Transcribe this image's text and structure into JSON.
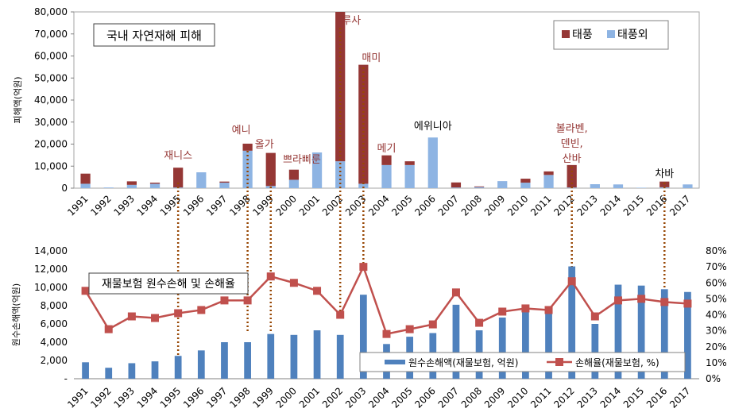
{
  "chart_data": [
    {
      "type": "bar",
      "stacked": true,
      "title": "국내 자연재해 피해",
      "ylabel": "피해액(억원)",
      "ylim": [
        0,
        80000
      ],
      "yticks": [
        0,
        10000,
        20000,
        30000,
        40000,
        50000,
        60000,
        70000,
        80000
      ],
      "ytick_labels": [
        "0",
        "10,000",
        "20,000",
        "30,000",
        "40,000",
        "50,000",
        "60,000",
        "70,000",
        "80,000"
      ],
      "categories": [
        "1991",
        "1992",
        "1993",
        "1994",
        "1995",
        "1996",
        "1997",
        "1998",
        "1999",
        "2000",
        "2001",
        "2002",
        "2003",
        "2004",
        "2005",
        "2006",
        "2007",
        "2008",
        "2009",
        "2010",
        "2011",
        "2012",
        "2013",
        "2014",
        "2015",
        "2016",
        "2017"
      ],
      "series": [
        {
          "name": "태풍외",
          "color": "#8EB4E3",
          "values": [
            2000,
            300,
            1500,
            2000,
            300,
            7200,
            2500,
            17000,
            1000,
            3800,
            16200,
            12200,
            2000,
            10500,
            10500,
            23000,
            300,
            500,
            3200,
            2500,
            6000,
            300,
            1800,
            1700,
            200,
            400,
            1700
          ]
        },
        {
          "name": "태풍",
          "color": "#953735",
          "values": [
            4600,
            0,
            1600,
            500,
            9000,
            0,
            500,
            3200,
            15000,
            4600,
            0,
            67800,
            54000,
            4400,
            1700,
            0,
            2300,
            300,
            0,
            1800,
            1600,
            10200,
            0,
            0,
            0,
            2600,
            0
          ]
        }
      ],
      "legend_position": "top-right",
      "annotations": [
        {
          "category": "1995",
          "text": "재니스"
        },
        {
          "category": "1998",
          "text": "예니"
        },
        {
          "category": "1999",
          "text": "올가"
        },
        {
          "category": "2000",
          "text": "쁘라삐룬"
        },
        {
          "category": "2002",
          "text": "루사"
        },
        {
          "category": "2003",
          "text": "매미"
        },
        {
          "category": "2004",
          "text": "메기"
        },
        {
          "category": "2006",
          "text": "에위니아"
        },
        {
          "category": "2012",
          "text": "볼라벤,"
        },
        {
          "category": "2012",
          "text": "덴빈,"
        },
        {
          "category": "2012",
          "text": "산바"
        },
        {
          "category": "2016",
          "text": "차바"
        }
      ],
      "grid": false
    },
    {
      "type": "bar+line",
      "title": "재물보험 원수손해 및 손해율",
      "ylabel": "원수손해액(억원)",
      "ylim": [
        0,
        14000
      ],
      "yticks": [
        0,
        2000,
        4000,
        6000,
        8000,
        10000,
        12000,
        14000
      ],
      "ytick_labels": [
        "-",
        "2,000",
        "4,000",
        "6,000",
        "8,000",
        "10,000",
        "12,000",
        "14,000"
      ],
      "y2lim": [
        0,
        80
      ],
      "y2ticks": [
        0,
        10,
        20,
        30,
        40,
        50,
        60,
        70,
        80
      ],
      "y2tick_labels": [
        "0%",
        "10%",
        "20%",
        "30%",
        "40%",
        "50%",
        "60%",
        "70%",
        "80%"
      ],
      "categories": [
        "1991",
        "1992",
        "1993",
        "1994",
        "1995",
        "1996",
        "1997",
        "1998",
        "1999",
        "2000",
        "2001",
        "2002",
        "2003",
        "2004",
        "2005",
        "2006",
        "2007",
        "2008",
        "2009",
        "2010",
        "2011",
        "2012",
        "2013",
        "2014",
        "2015",
        "2016",
        "2017"
      ],
      "series": [
        {
          "name": "원수손해액(재물보험, 억원)",
          "type": "bar",
          "axis": "left",
          "color": "#4F81BD",
          "values": [
            1800,
            1200,
            1700,
            1900,
            2500,
            3100,
            4000,
            4000,
            4900,
            4800,
            5300,
            4800,
            9200,
            3800,
            4600,
            5000,
            8100,
            5300,
            6700,
            7600,
            7600,
            12300,
            6000,
            10300,
            10200,
            9800,
            9500
          ]
        },
        {
          "name": "손해율(재물보험, %)",
          "type": "line",
          "axis": "right",
          "color": "#C0504D",
          "values": [
            55,
            31,
            39,
            38,
            41,
            43,
            49,
            49,
            64,
            60,
            55,
            40,
            70,
            28,
            31,
            34,
            54,
            35,
            42,
            44,
            43,
            61,
            39,
            49,
            50,
            48,
            47
          ]
        }
      ],
      "legend_position": "bottom-right",
      "grid": false
    }
  ]
}
